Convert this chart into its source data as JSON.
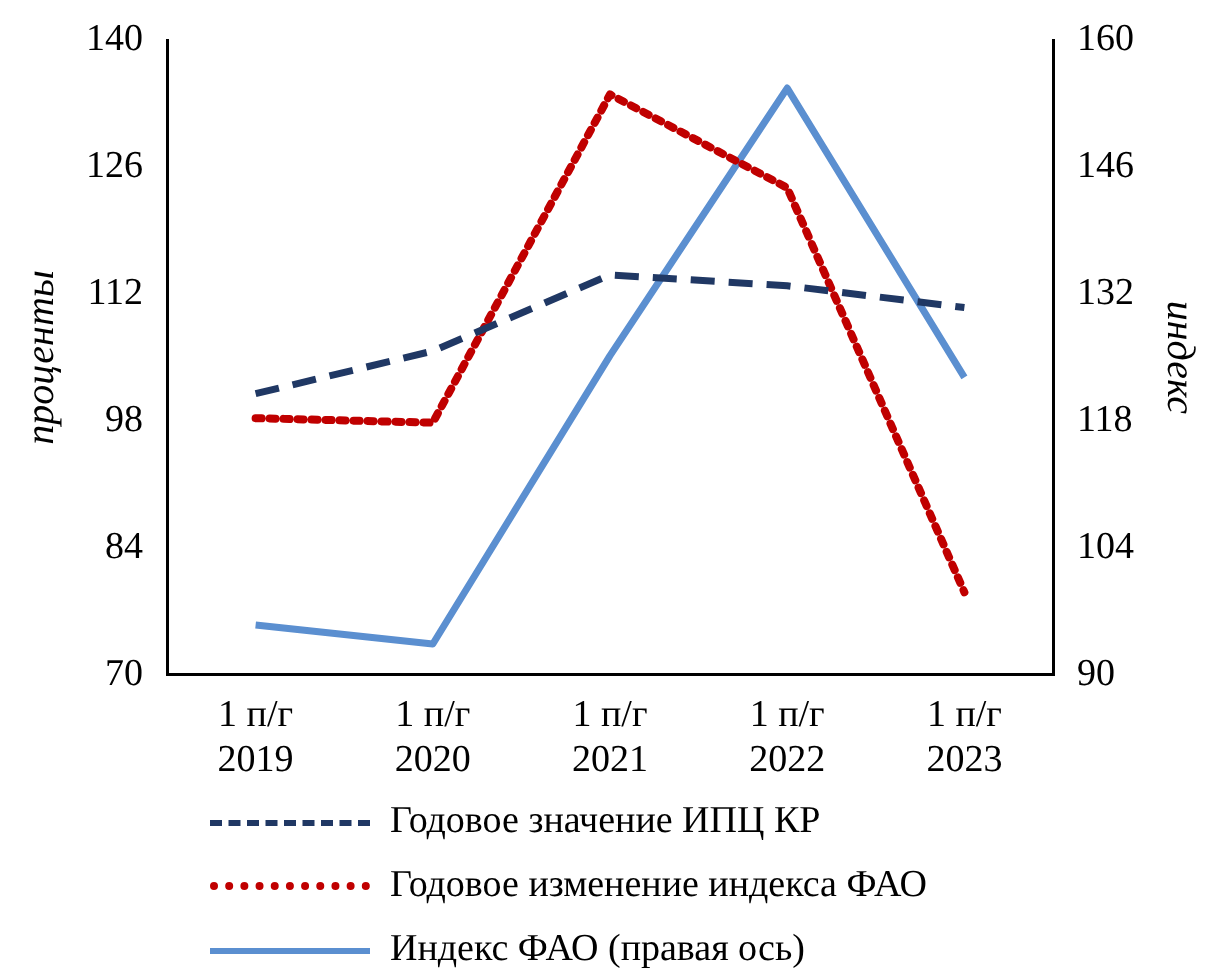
{
  "chart_data": {
    "type": "line",
    "categories": [
      "1 п/г\n2019",
      "1 п/г\n2020",
      "1 п/г\n2021",
      "1 п/г\n2022",
      "1 п/г\n2023"
    ],
    "ylabel": "проценты",
    "y2label": "индекс",
    "ylim": [
      70,
      140
    ],
    "yticks": [
      70,
      84,
      98,
      112,
      126,
      140
    ],
    "y2lim": [
      90,
      160
    ],
    "y2ticks": [
      90,
      104,
      118,
      132,
      146,
      160
    ],
    "grid": false,
    "legend": "bottom",
    "marker": "none",
    "series": [
      {
        "name": "Годовое значение ИПЦ КР",
        "color": "#203864",
        "line_style": "dashed",
        "values": [
          101,
          105.7,
          114.1,
          112.9,
          110.5
        ]
      },
      {
        "name": "Годовое изменение индекса ФАО",
        "color": "#c00000",
        "line_style": "dotted",
        "values": [
          98.3,
          97.8,
          134,
          123.7,
          79.1
        ]
      },
      {
        "name": "Индекс ФАО (правая ось)",
        "color": "#5b8fd0",
        "line_style": "solid",
        "axis": "y2",
        "values": [
          95.5,
          93.4,
          125.2,
          154.7,
          122.8
        ]
      }
    ]
  }
}
